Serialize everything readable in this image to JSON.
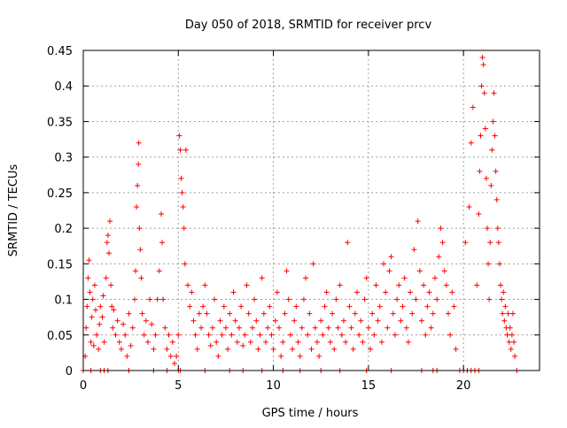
{
  "chart_data": {
    "type": "scatter",
    "title": "Day 050 of 2018, SRMTID for receiver prcv",
    "xlabel": "GPS time / hours",
    "ylabel": "SRMTID / TECUs",
    "xlim": [
      0,
      24
    ],
    "ylim": [
      0,
      0.45
    ],
    "xticks": [
      0,
      5,
      10,
      15,
      20
    ],
    "xtick_labels": [
      "0",
      "5",
      "10",
      "15",
      "20"
    ],
    "yticks": [
      0,
      0.05,
      0.1,
      0.15,
      0.2,
      0.25,
      0.3,
      0.35,
      0.4,
      0.45
    ],
    "ytick_labels": [
      "0",
      "0.05",
      "0.1",
      "0.15",
      "0.2",
      "0.25",
      "0.3",
      "0.35",
      "0.4",
      "0.45"
    ],
    "grid": true,
    "marker": "+",
    "series": [
      {
        "name": "SRMTID",
        "color": "#ff0000",
        "points": [
          [
            0.1,
            0.02
          ],
          [
            0.15,
            0.06
          ],
          [
            0.2,
            0.09
          ],
          [
            0.25,
            0.13
          ],
          [
            0.3,
            0.155
          ],
          [
            0.35,
            0.11
          ],
          [
            0.4,
            0.04
          ],
          [
            0.45,
            0.075
          ],
          [
            0.5,
            0.1
          ],
          [
            0.55,
            0.035
          ],
          [
            0.6,
            0.12
          ],
          [
            0.65,
            0.085
          ],
          [
            0.7,
            0.05
          ],
          [
            0.8,
            0.03
          ],
          [
            0.85,
            0.065
          ],
          [
            0.9,
            0.09
          ],
          [
            1.0,
            0.075
          ],
          [
            1.05,
            0.105
          ],
          [
            1.1,
            0.04
          ],
          [
            1.2,
            0.13
          ],
          [
            1.25,
            0.18
          ],
          [
            1.3,
            0.19
          ],
          [
            1.35,
            0.165
          ],
          [
            1.4,
            0.21
          ],
          [
            1.45,
            0.12
          ],
          [
            1.5,
            0.09
          ],
          [
            1.55,
            0.06
          ],
          [
            1.6,
            0.085
          ],
          [
            1.7,
            0.05
          ],
          [
            1.8,
            0.07
          ],
          [
            1.9,
            0.04
          ],
          [
            2.0,
            0.03
          ],
          [
            2.1,
            0.065
          ],
          [
            2.2,
            0.05
          ],
          [
            2.3,
            0.02
          ],
          [
            2.4,
            0.08
          ],
          [
            2.5,
            0.035
          ],
          [
            2.6,
            0.06
          ],
          [
            2.7,
            0.1
          ],
          [
            2.75,
            0.14
          ],
          [
            2.8,
            0.23
          ],
          [
            2.85,
            0.26
          ],
          [
            2.9,
            0.29
          ],
          [
            2.92,
            0.32
          ],
          [
            2.95,
            0.2
          ],
          [
            3.0,
            0.17
          ],
          [
            3.05,
            0.13
          ],
          [
            3.1,
            0.08
          ],
          [
            3.2,
            0.05
          ],
          [
            3.3,
            0.07
          ],
          [
            3.4,
            0.04
          ],
          [
            3.5,
            0.1
          ],
          [
            3.6,
            0.065
          ],
          [
            3.7,
            0.03
          ],
          [
            3.8,
            0.05
          ],
          [
            3.9,
            0.1
          ],
          [
            4.0,
            0.14
          ],
          [
            4.1,
            0.22
          ],
          [
            4.15,
            0.18
          ],
          [
            4.2,
            0.1
          ],
          [
            4.3,
            0.06
          ],
          [
            4.4,
            0.03
          ],
          [
            4.5,
            0.05
          ],
          [
            4.6,
            0.02
          ],
          [
            4.7,
            0.04
          ],
          [
            4.8,
            0.01
          ],
          [
            4.9,
            0.02
          ],
          [
            5.0,
            0.05
          ],
          [
            5.05,
            0.33
          ],
          [
            5.1,
            0.31
          ],
          [
            5.15,
            0.27
          ],
          [
            5.2,
            0.25
          ],
          [
            5.25,
            0.23
          ],
          [
            5.3,
            0.2
          ],
          [
            5.35,
            0.15
          ],
          [
            5.4,
            0.31
          ],
          [
            5.5,
            0.12
          ],
          [
            5.6,
            0.09
          ],
          [
            5.7,
            0.11
          ],
          [
            5.8,
            0.07
          ],
          [
            5.9,
            0.05
          ],
          [
            6.0,
            0.03
          ],
          [
            6.1,
            0.08
          ],
          [
            6.2,
            0.06
          ],
          [
            6.3,
            0.09
          ],
          [
            6.4,
            0.12
          ],
          [
            6.5,
            0.08
          ],
          [
            6.6,
            0.05
          ],
          [
            6.7,
            0.035
          ],
          [
            6.8,
            0.06
          ],
          [
            6.9,
            0.1
          ],
          [
            7.0,
            0.04
          ],
          [
            7.1,
            0.02
          ],
          [
            7.2,
            0.07
          ],
          [
            7.3,
            0.05
          ],
          [
            7.4,
            0.09
          ],
          [
            7.5,
            0.06
          ],
          [
            7.6,
            0.03
          ],
          [
            7.7,
            0.08
          ],
          [
            7.8,
            0.05
          ],
          [
            7.9,
            0.11
          ],
          [
            8.0,
            0.07
          ],
          [
            8.1,
            0.04
          ],
          [
            8.2,
            0.06
          ],
          [
            8.3,
            0.09
          ],
          [
            8.4,
            0.035
          ],
          [
            8.5,
            0.05
          ],
          [
            8.6,
            0.12
          ],
          [
            8.7,
            0.08
          ],
          [
            8.8,
            0.04
          ],
          [
            8.9,
            0.06
          ],
          [
            9.0,
            0.1
          ],
          [
            9.1,
            0.07
          ],
          [
            9.2,
            0.03
          ],
          [
            9.3,
            0.05
          ],
          [
            9.4,
            0.13
          ],
          [
            9.5,
            0.08
          ],
          [
            9.6,
            0.04
          ],
          [
            9.7,
            0.06
          ],
          [
            9.8,
            0.09
          ],
          [
            9.9,
            0.05
          ],
          [
            10.0,
            0.03
          ],
          [
            10.1,
            0.07
          ],
          [
            10.2,
            0.11
          ],
          [
            10.3,
            0.06
          ],
          [
            10.4,
            0.02
          ],
          [
            10.5,
            0.04
          ],
          [
            10.6,
            0.08
          ],
          [
            10.7,
            0.14
          ],
          [
            10.8,
            0.1
          ],
          [
            10.9,
            0.05
          ],
          [
            11.0,
            0.03
          ],
          [
            11.1,
            0.07
          ],
          [
            11.2,
            0.09
          ],
          [
            11.3,
            0.04
          ],
          [
            11.4,
            0.02
          ],
          [
            11.5,
            0.06
          ],
          [
            11.6,
            0.1
          ],
          [
            11.7,
            0.13
          ],
          [
            11.8,
            0.05
          ],
          [
            11.9,
            0.08
          ],
          [
            12.0,
            0.03
          ],
          [
            12.1,
            0.15
          ],
          [
            12.2,
            0.06
          ],
          [
            12.3,
            0.04
          ],
          [
            12.4,
            0.02
          ],
          [
            12.5,
            0.07
          ],
          [
            12.6,
            0.05
          ],
          [
            12.7,
            0.09
          ],
          [
            12.8,
            0.11
          ],
          [
            12.9,
            0.06
          ],
          [
            13.0,
            0.04
          ],
          [
            13.1,
            0.08
          ],
          [
            13.2,
            0.03
          ],
          [
            13.3,
            0.1
          ],
          [
            13.4,
            0.06
          ],
          [
            13.5,
            0.12
          ],
          [
            13.6,
            0.05
          ],
          [
            13.7,
            0.07
          ],
          [
            13.8,
            0.04
          ],
          [
            13.9,
            0.18
          ],
          [
            14.0,
            0.09
          ],
          [
            14.1,
            0.06
          ],
          [
            14.2,
            0.03
          ],
          [
            14.3,
            0.08
          ],
          [
            14.4,
            0.11
          ],
          [
            14.5,
            0.05
          ],
          [
            14.6,
            0.07
          ],
          [
            14.7,
            0.04
          ],
          [
            14.8,
            0.1
          ],
          [
            14.9,
            0.13
          ],
          [
            15.0,
            0.06
          ],
          [
            15.1,
            0.03
          ],
          [
            15.2,
            0.08
          ],
          [
            15.3,
            0.05
          ],
          [
            15.4,
            0.12
          ],
          [
            15.5,
            0.07
          ],
          [
            15.6,
            0.09
          ],
          [
            15.7,
            0.04
          ],
          [
            15.8,
            0.15
          ],
          [
            15.9,
            0.11
          ],
          [
            16.0,
            0.06
          ],
          [
            16.1,
            0.14
          ],
          [
            16.2,
            0.16
          ],
          [
            16.3,
            0.08
          ],
          [
            16.4,
            0.05
          ],
          [
            16.5,
            0.1
          ],
          [
            16.6,
            0.12
          ],
          [
            16.7,
            0.07
          ],
          [
            16.8,
            0.09
          ],
          [
            16.9,
            0.13
          ],
          [
            17.0,
            0.06
          ],
          [
            17.1,
            0.04
          ],
          [
            17.2,
            0.11
          ],
          [
            17.3,
            0.08
          ],
          [
            17.4,
            0.17
          ],
          [
            17.5,
            0.1
          ],
          [
            17.6,
            0.21
          ],
          [
            17.7,
            0.14
          ],
          [
            17.8,
            0.07
          ],
          [
            17.9,
            0.12
          ],
          [
            18.0,
            0.05
          ],
          [
            18.1,
            0.09
          ],
          [
            18.2,
            0.11
          ],
          [
            18.3,
            0.06
          ],
          [
            18.4,
            0.08
          ],
          [
            18.5,
            0.13
          ],
          [
            18.6,
            0.1
          ],
          [
            18.7,
            0.16
          ],
          [
            18.8,
            0.2
          ],
          [
            18.9,
            0.18
          ],
          [
            19.0,
            0.14
          ],
          [
            19.1,
            0.12
          ],
          [
            19.2,
            0.08
          ],
          [
            19.3,
            0.05
          ],
          [
            19.4,
            0.11
          ],
          [
            19.5,
            0.09
          ],
          [
            19.6,
            0.03
          ],
          [
            20.1,
            0.18
          ],
          [
            20.3,
            0.23
          ],
          [
            20.4,
            0.32
          ],
          [
            20.5,
            0.37
          ],
          [
            20.7,
            0.12
          ],
          [
            20.8,
            0.22
          ],
          [
            20.85,
            0.28
          ],
          [
            20.9,
            0.33
          ],
          [
            20.95,
            0.4
          ],
          [
            21.0,
            0.44
          ],
          [
            21.05,
            0.43
          ],
          [
            21.1,
            0.39
          ],
          [
            21.15,
            0.34
          ],
          [
            21.2,
            0.27
          ],
          [
            21.25,
            0.2
          ],
          [
            21.3,
            0.15
          ],
          [
            21.35,
            0.1
          ],
          [
            21.4,
            0.18
          ],
          [
            21.45,
            0.26
          ],
          [
            21.5,
            0.31
          ],
          [
            21.55,
            0.35
          ],
          [
            21.6,
            0.39
          ],
          [
            21.65,
            0.33
          ],
          [
            21.7,
            0.28
          ],
          [
            21.75,
            0.24
          ],
          [
            21.8,
            0.2
          ],
          [
            21.85,
            0.18
          ],
          [
            21.9,
            0.15
          ],
          [
            21.95,
            0.12
          ],
          [
            22.0,
            0.1
          ],
          [
            22.05,
            0.08
          ],
          [
            22.1,
            0.11
          ],
          [
            22.15,
            0.07
          ],
          [
            22.2,
            0.09
          ],
          [
            22.25,
            0.06
          ],
          [
            22.3,
            0.05
          ],
          [
            22.35,
            0.08
          ],
          [
            22.4,
            0.04
          ],
          [
            22.45,
            0.06
          ],
          [
            22.5,
            0.03
          ],
          [
            22.55,
            0.05
          ],
          [
            22.6,
            0.08
          ],
          [
            22.65,
            0.04
          ],
          [
            22.7,
            0.02
          ]
        ]
      },
      {
        "name": "zero-level markers",
        "color": "#ff0000",
        "points": [
          [
            0.0,
            0
          ],
          [
            0.4,
            0
          ],
          [
            0.9,
            0
          ],
          [
            1.1,
            0
          ],
          [
            1.3,
            0
          ],
          [
            2.4,
            0
          ],
          [
            3.7,
            0
          ],
          [
            4.4,
            0
          ],
          [
            5.0,
            0
          ],
          [
            5.1,
            0
          ],
          [
            6.4,
            0
          ],
          [
            7.7,
            0
          ],
          [
            8.4,
            0
          ],
          [
            9.4,
            0
          ],
          [
            10.5,
            0
          ],
          [
            11.4,
            0
          ],
          [
            12.5,
            0
          ],
          [
            13.5,
            0
          ],
          [
            14.9,
            0
          ],
          [
            16.2,
            0
          ],
          [
            17.8,
            0
          ],
          [
            18.4,
            0
          ],
          [
            18.6,
            0
          ],
          [
            19.8,
            0
          ],
          [
            20.0,
            0
          ],
          [
            20.2,
            0
          ],
          [
            20.4,
            0
          ],
          [
            20.6,
            0
          ],
          [
            20.8,
            0
          ],
          [
            22.8,
            0
          ]
        ]
      }
    ]
  }
}
